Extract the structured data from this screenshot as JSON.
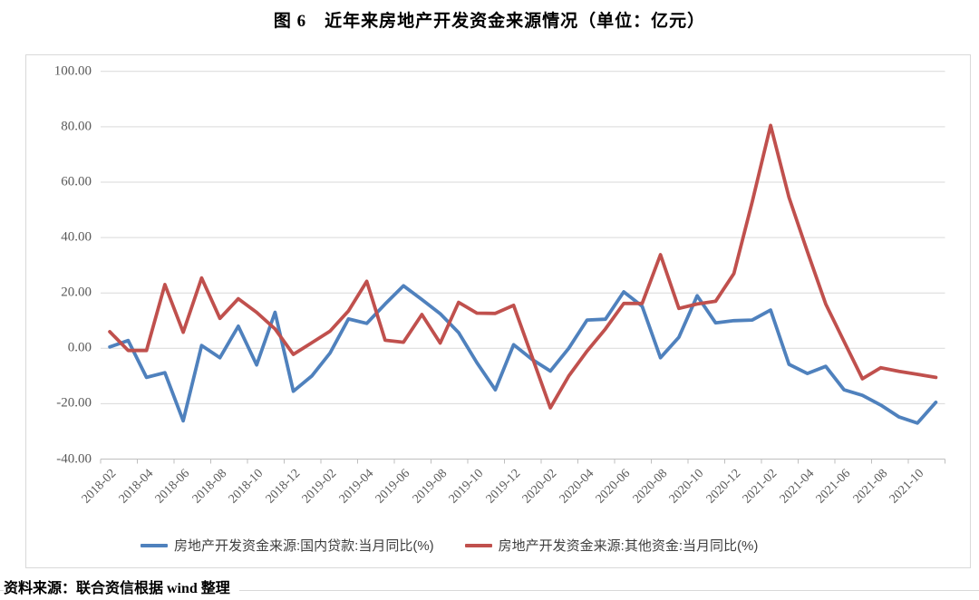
{
  "title": "图 6　近年来房地产开发资金来源情况（单位：亿元）",
  "source_note": "资料来源：联合资信根据 wind 整理",
  "colors": {
    "series_blue": "#4F81BD",
    "series_red": "#C0504D",
    "gridline": "#D9D9D9",
    "axis_line": "#BFBFBF",
    "axis_text": "#595959"
  },
  "chart_data": {
    "type": "line",
    "title": "图 6　近年来房地产开发资金来源情况（单位：亿元）",
    "xlabel": "",
    "ylabel": "",
    "ylim": [
      -40,
      100
    ],
    "y_ticks": [
      "100.00",
      "80.00",
      "60.00",
      "40.00",
      "20.00",
      "0.00",
      "-20.00",
      "-40.00"
    ],
    "grid": "horizontal",
    "legend_position": "bottom",
    "x": [
      "2018-02",
      "2018-03",
      "2018-04",
      "2018-05",
      "2018-06",
      "2018-07",
      "2018-08",
      "2018-09",
      "2018-10",
      "2018-11",
      "2018-12",
      "2019-01",
      "2019-02",
      "2019-03",
      "2019-04",
      "2019-05",
      "2019-06",
      "2019-07",
      "2019-08",
      "2019-09",
      "2019-10",
      "2019-11",
      "2019-12",
      "2020-01",
      "2020-02",
      "2020-03",
      "2020-04",
      "2020-05",
      "2020-06",
      "2020-07",
      "2020-08",
      "2020-09",
      "2020-10",
      "2020-11",
      "2020-12",
      "2021-01",
      "2021-02",
      "2021-03",
      "2021-04",
      "2021-05",
      "2021-06",
      "2021-07",
      "2021-08",
      "2021-09",
      "2021-10",
      "2021-11"
    ],
    "x_tick_labels": [
      "2018-02",
      "2018-04",
      "2018-06",
      "2018-08",
      "2018-10",
      "2018-12",
      "2019-02",
      "2019-04",
      "2019-06",
      "2019-08",
      "2019-10",
      "2019-12",
      "2020-02",
      "2020-04",
      "2020-06",
      "2020-08",
      "2020-10",
      "2020-12",
      "2021-02",
      "2021-04",
      "2021-06",
      "2021-08",
      "2021-10"
    ],
    "series": [
      {
        "name": "房地产开发资金来源:国内贷款:当月同比(%)",
        "color": "#4F81BD",
        "values": [
          0.5,
          2.8,
          -10.5,
          -8.8,
          -26.2,
          1.0,
          -3.4,
          8.0,
          -6.0,
          13.0,
          -15.5,
          -10.0,
          -1.7,
          10.6,
          9.0,
          16.0,
          22.6,
          17.6,
          12.5,
          5.7,
          -5.2,
          -15.0,
          1.3,
          -4.0,
          -8.2,
          0.0,
          10.2,
          10.5,
          20.4,
          15.2,
          -3.4,
          4.0,
          19.0,
          9.2,
          10.0,
          10.2,
          13.8,
          -5.8,
          -9.1,
          -6.5,
          -15.0,
          -17.0,
          -20.5,
          -24.8,
          -27.0,
          -19.5
        ]
      },
      {
        "name": "房地产开发资金来源:其他资金:当月同比(%)",
        "color": "#C0504D",
        "values": [
          6.0,
          -0.8,
          -0.8,
          23.0,
          5.8,
          25.4,
          10.8,
          17.9,
          13.0,
          7.0,
          -2.2,
          2.0,
          6.2,
          13.5,
          24.2,
          2.9,
          2.2,
          12.2,
          1.9,
          16.6,
          12.7,
          12.6,
          15.5,
          -3.0,
          -21.5,
          -10.0,
          -1.0,
          7.0,
          16.2,
          16.2,
          33.8,
          14.4,
          16.0,
          17.0,
          27.0,
          53.0,
          80.5,
          54.5,
          35.0,
          16.0,
          2.5,
          -11.0,
          -7.0,
          -8.3,
          -9.4,
          -10.5
        ]
      }
    ]
  }
}
